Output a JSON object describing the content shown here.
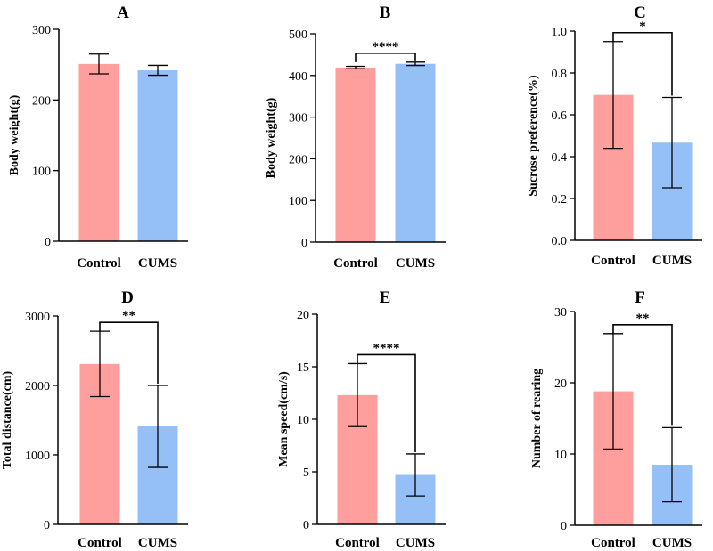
{
  "chart_data": [
    {
      "type": "bar",
      "title": "A",
      "categories": [
        "Control",
        "CUMS"
      ],
      "values": [
        251,
        242
      ],
      "errors": [
        14,
        7
      ],
      "colors": [
        "#fe9f9e",
        "#94c0f7"
      ],
      "xlabel": "",
      "ylabel": "Body weight(g)",
      "ylim": [
        0,
        300
      ],
      "yticks": [
        0,
        100,
        200,
        300
      ],
      "yticklabels": [
        "0",
        "100",
        "200",
        "300"
      ],
      "significance": null
    },
    {
      "type": "bar",
      "title": "B",
      "categories": [
        "Control",
        "CUMS"
      ],
      "values": [
        419,
        428
      ],
      "errors": [
        3,
        4
      ],
      "colors": [
        "#fe9f9e",
        "#94c0f7"
      ],
      "xlabel": "",
      "ylabel": "Body weight(g)",
      "ylim": [
        0,
        500
      ],
      "yticks": [
        0,
        100,
        200,
        300,
        400,
        500
      ],
      "yticklabels": [
        "0",
        "100",
        "200",
        "300",
        "400",
        "500"
      ],
      "significance": "****"
    },
    {
      "type": "bar",
      "title": "C",
      "categories": [
        "Control",
        "CUMS"
      ],
      "values": [
        0.695,
        0.467
      ],
      "errors": [
        0.255,
        0.216
      ],
      "colors": [
        "#fe9f9e",
        "#94c0f7"
      ],
      "xlabel": "",
      "ylabel": "Sucrose preference(%)",
      "ylim": [
        0,
        1.0
      ],
      "yticks": [
        0,
        0.2,
        0.4,
        0.6,
        0.8,
        1.0
      ],
      "yticklabels": [
        "0.0",
        "0.2",
        "0.4",
        "0.6",
        "0.8",
        "1.0"
      ],
      "significance": "*"
    },
    {
      "type": "bar",
      "title": "D",
      "categories": [
        "Control",
        "CUMS"
      ],
      "values": [
        2310,
        1410
      ],
      "errors": [
        470,
        590
      ],
      "colors": [
        "#fe9f9e",
        "#94c0f7"
      ],
      "xlabel": "",
      "ylabel": "Total distance(cm)",
      "ylim": [
        0,
        3000
      ],
      "yticks": [
        0,
        1000,
        2000,
        3000
      ],
      "yticklabels": [
        "0",
        "1000",
        "2000",
        "3000"
      ],
      "significance": "**"
    },
    {
      "type": "bar",
      "title": "E",
      "categories": [
        "Control",
        "CUMS"
      ],
      "values": [
        12.3,
        4.7
      ],
      "errors": [
        3.0,
        2.0
      ],
      "colors": [
        "#fe9f9e",
        "#94c0f7"
      ],
      "xlabel": "",
      "ylabel": "Mean speed(cm/s)",
      "ylim": [
        0,
        20
      ],
      "yticks": [
        0,
        5,
        10,
        15,
        20
      ],
      "yticklabels": [
        "0",
        "5",
        "10",
        "15",
        "20"
      ],
      "significance": "****"
    },
    {
      "type": "bar",
      "title": "F",
      "categories": [
        "Control",
        "CUMS"
      ],
      "values": [
        18.8,
        8.5
      ],
      "errors": [
        8.1,
        5.2
      ],
      "colors": [
        "#fe9f9e",
        "#94c0f7"
      ],
      "xlabel": "",
      "ylabel": "Number of rearing",
      "ylim": [
        0,
        30
      ],
      "yticks": [
        0,
        10,
        20,
        30
      ],
      "yticklabels": [
        "0",
        "10",
        "20",
        "30"
      ],
      "significance": "**"
    }
  ]
}
